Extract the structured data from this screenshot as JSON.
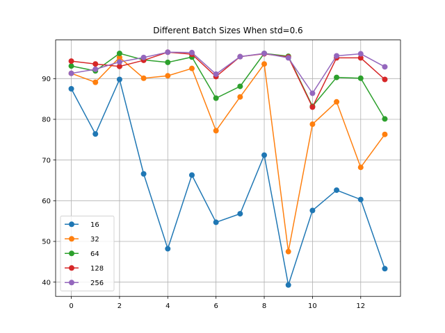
{
  "chart_data": {
    "type": "line",
    "title": "Different Batch Sizes When std=0.6",
    "xlabel": "",
    "ylabel": "",
    "x": [
      0,
      1,
      2,
      3,
      4,
      5,
      6,
      7,
      8,
      9,
      10,
      11,
      12,
      13
    ],
    "xlim": [
      -0.65,
      13.65
    ],
    "ylim": [
      36.5,
      99.5
    ],
    "x_ticks": [
      0,
      2,
      4,
      6,
      8,
      10,
      12
    ],
    "y_ticks": [
      40,
      50,
      60,
      70,
      80,
      90
    ],
    "grid": true,
    "legend_position": "lower-left",
    "series": [
      {
        "name": "16",
        "color": "#1f77b4",
        "values": [
          87.5,
          76.4,
          89.8,
          66.6,
          48.2,
          66.3,
          54.7,
          56.8,
          71.2,
          39.3,
          57.6,
          62.6,
          60.3,
          43.3
        ]
      },
      {
        "name": "32",
        "color": "#ff7f0e",
        "values": [
          91.3,
          89.1,
          95.2,
          90.1,
          90.7,
          92.5,
          77.2,
          85.5,
          93.6,
          47.5,
          78.8,
          84.3,
          68.2,
          76.3
        ]
      },
      {
        "name": "64",
        "color": "#2ca02c",
        "values": [
          93.1,
          91.9,
          96.2,
          94.6,
          94.0,
          95.3,
          85.2,
          88.1,
          96.2,
          95.5,
          83.2,
          90.3,
          90.1,
          80.1
        ]
      },
      {
        "name": "128",
        "color": "#d62728",
        "values": [
          94.3,
          93.6,
          93.0,
          94.5,
          96.5,
          96.0,
          90.5,
          95.4,
          96.1,
          95.3,
          83.0,
          95.1,
          95.1,
          89.8
        ]
      },
      {
        "name": "256",
        "color": "#9467bd",
        "values": [
          91.3,
          92.3,
          94.1,
          95.2,
          96.5,
          96.4,
          91.1,
          95.4,
          96.2,
          95.1,
          86.4,
          95.6,
          96.1,
          92.9
        ]
      }
    ]
  }
}
